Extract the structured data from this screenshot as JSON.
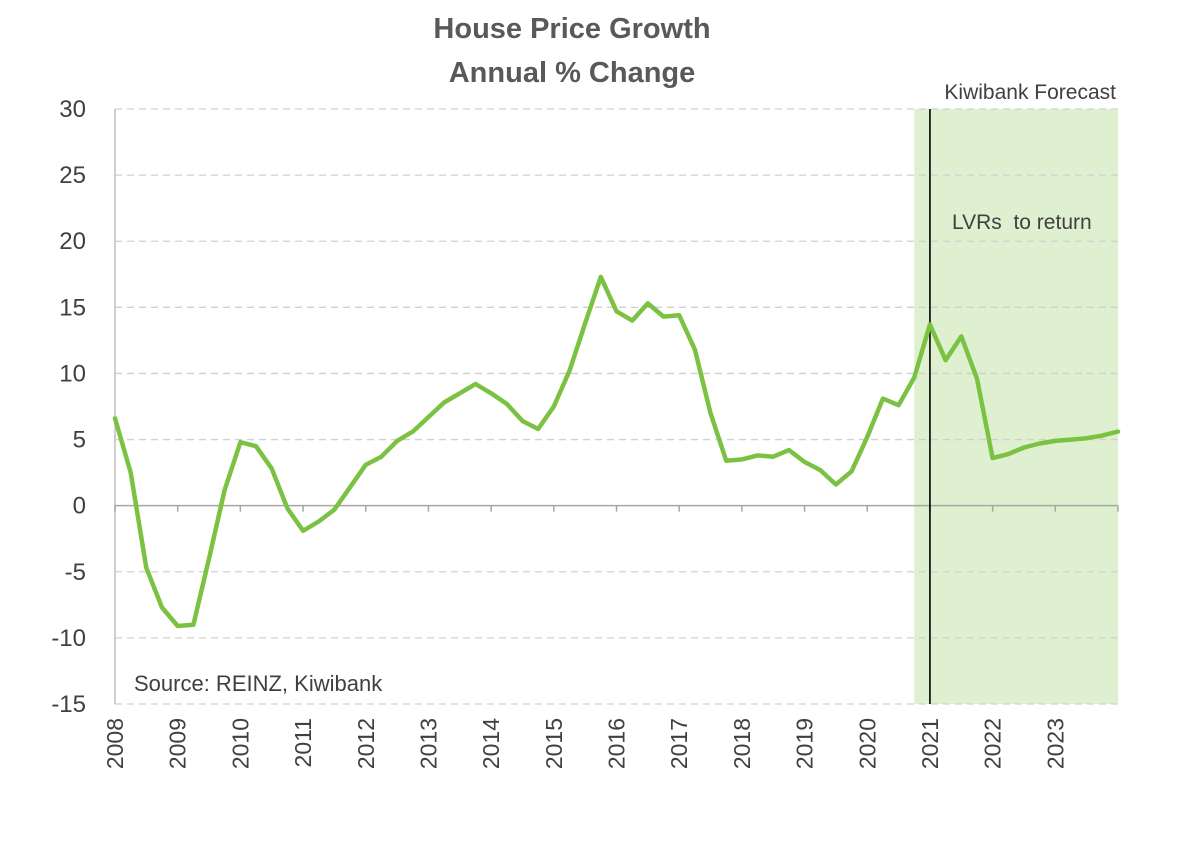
{
  "chart_data": {
    "type": "line",
    "title": "House Price Growth",
    "subtitle": "Annual % Change",
    "ylim": [
      -15,
      30
    ],
    "yticks": [
      -15,
      -10,
      -5,
      0,
      5,
      10,
      15,
      20,
      25,
      30
    ],
    "xticks": [
      "2008",
      "2009",
      "2010",
      "2011",
      "2012",
      "2013",
      "2014",
      "2015",
      "2016",
      "2017",
      "2018",
      "2019",
      "2020",
      "2021",
      "2022",
      "2023"
    ],
    "grid": "horizontal dashed",
    "forecast_region": {
      "label": "Kiwibank Forecast",
      "start": 2020.75,
      "end": 2024.0,
      "color": "#dff0d0"
    },
    "vline": {
      "x": 2021.0,
      "label": "LVRs  to return"
    },
    "source": "Source: REINZ, Kiwibank",
    "series": [
      {
        "color": "#7cc242",
        "x": [
          2008.0,
          2008.25,
          2008.5,
          2008.75,
          2009.0,
          2009.25,
          2009.5,
          2009.75,
          2010.0,
          2010.25,
          2010.5,
          2010.75,
          2011.0,
          2011.25,
          2011.5,
          2011.75,
          2012.0,
          2012.25,
          2012.5,
          2012.75,
          2013.0,
          2013.25,
          2013.5,
          2013.75,
          2014.0,
          2014.25,
          2014.5,
          2014.75,
          2015.0,
          2015.25,
          2015.5,
          2015.75,
          2016.0,
          2016.25,
          2016.5,
          2016.75,
          2017.0,
          2017.25,
          2017.5,
          2017.75,
          2018.0,
          2018.25,
          2018.5,
          2018.75,
          2019.0,
          2019.25,
          2019.5,
          2019.75,
          2020.0,
          2020.25,
          2020.5,
          2020.75,
          2021.0,
          2021.25,
          2021.5,
          2021.75,
          2022.0,
          2022.25,
          2022.5,
          2022.75,
          2023.0,
          2023.25,
          2023.5,
          2023.75,
          2024.0
        ],
        "values": [
          6.6,
          2.5,
          -4.7,
          -7.7,
          -9.1,
          -9.0,
          -4.0,
          1.2,
          4.8,
          4.5,
          2.8,
          -0.2,
          -1.9,
          -1.2,
          -0.3,
          1.4,
          3.1,
          3.7,
          4.9,
          5.6,
          6.7,
          7.8,
          8.5,
          9.2,
          8.5,
          7.7,
          6.4,
          5.8,
          7.5,
          10.2,
          13.8,
          17.3,
          14.7,
          14.0,
          15.3,
          14.3,
          14.4,
          11.8,
          7.0,
          3.4,
          3.5,
          3.8,
          3.7,
          4.2,
          3.3,
          2.7,
          1.6,
          2.6,
          5.2,
          8.1,
          7.6,
          9.7,
          13.7,
          11.0,
          12.8,
          9.6,
          3.6,
          3.9,
          4.4,
          4.7,
          4.9,
          5.0,
          5.1,
          5.3,
          5.6
        ]
      }
    ]
  }
}
